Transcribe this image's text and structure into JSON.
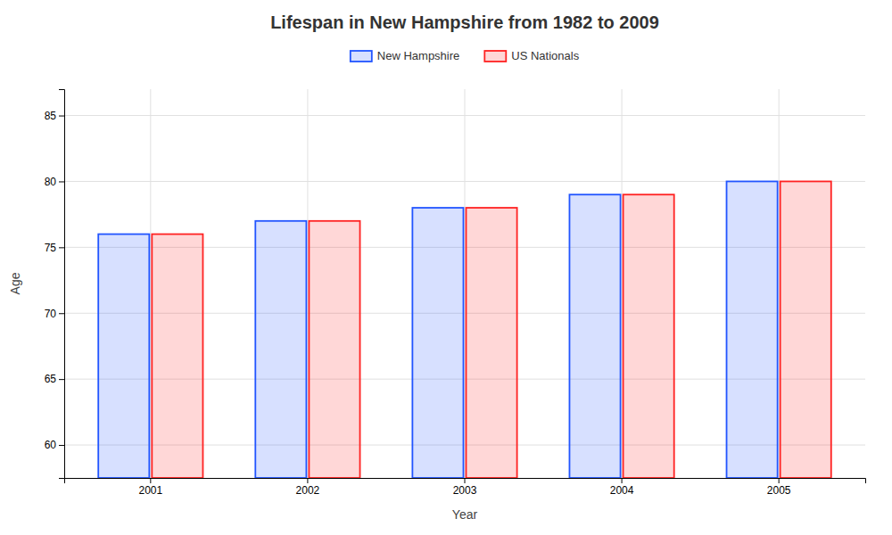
{
  "chart_data": {
    "type": "bar",
    "title": "Lifespan in New Hampshire from 1982 to 2009",
    "x_label": "Year",
    "y_label": "Age",
    "categories": [
      "2001",
      "2002",
      "2003",
      "2004",
      "2005"
    ],
    "series": [
      {
        "name": "New Hampshire",
        "color": "#2255ff",
        "values": [
          76,
          77,
          78,
          79,
          80
        ]
      },
      {
        "name": "US Nationals",
        "color": "#ff2222",
        "values": [
          76,
          77,
          78,
          79,
          80
        ]
      }
    ],
    "ylim": [
      57.5,
      87
    ],
    "yticks": [
      60,
      65,
      70,
      75,
      80,
      85
    ],
    "grid": true,
    "legend": "top"
  }
}
